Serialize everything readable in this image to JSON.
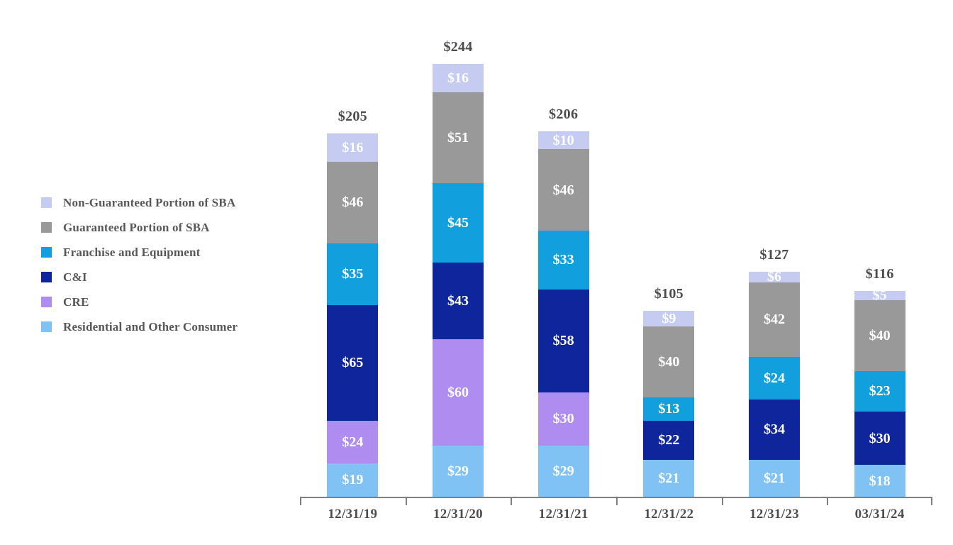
{
  "legend": {
    "items": [
      {
        "label": "Non-Guaranteed Portion of SBA",
        "color": "#C5CBF1"
      },
      {
        "label": "Guaranteed Portion of SBA",
        "color": "#999999"
      },
      {
        "label": "Franchise and Equipment",
        "color": "#119FDD"
      },
      {
        "label": "C&I",
        "color": "#0F259B"
      },
      {
        "label": "CRE",
        "color": "#AE8CF0"
      },
      {
        "label": "Residential and Other Consumer",
        "color": "#80C2F3"
      }
    ]
  },
  "chart_data": {
    "type": "bar",
    "subtype": "stacked",
    "stack_order": "bottom-to-top",
    "legend_position": "left",
    "grid": false,
    "value_prefix": "$",
    "categories": [
      "12/31/19",
      "12/31/20",
      "12/31/21",
      "12/31/22",
      "12/31/23",
      "03/31/24"
    ],
    "series": [
      {
        "name": "Residential and Other Consumer",
        "color": "#80C2F3",
        "values": [
          19,
          29,
          29,
          21,
          21,
          18
        ]
      },
      {
        "name": "CRE",
        "color": "#AE8CF0",
        "values": [
          24,
          60,
          30,
          0,
          0,
          0
        ]
      },
      {
        "name": "C&I",
        "color": "#0F259B",
        "values": [
          65,
          43,
          58,
          22,
          34,
          30
        ]
      },
      {
        "name": "Franchise and Equipment",
        "color": "#119FDD",
        "values": [
          35,
          45,
          33,
          13,
          24,
          23
        ]
      },
      {
        "name": "Guaranteed Portion of SBA",
        "color": "#999999",
        "values": [
          46,
          51,
          46,
          40,
          42,
          40
        ]
      },
      {
        "name": "Non-Guaranteed Portion of SBA",
        "color": "#C5CBF1",
        "values": [
          16,
          16,
          10,
          9,
          6,
          5
        ]
      }
    ],
    "totals": [
      205,
      244,
      206,
      105,
      127,
      116
    ],
    "axis_color": "#7f7f7f",
    "label_color": "#4c4c4c"
  }
}
